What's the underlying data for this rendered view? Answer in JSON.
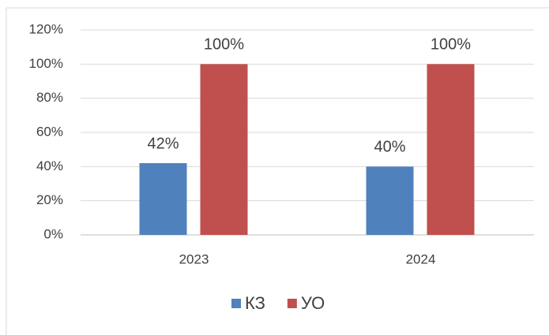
{
  "chart_data": {
    "type": "bar",
    "categories": [
      "2023",
      "2024"
    ],
    "series": [
      {
        "name": "КЗ",
        "color": "#4f81bd",
        "values": [
          42,
          40
        ],
        "value_labels": [
          "42%",
          "40%"
        ]
      },
      {
        "name": "УО",
        "color": "#c0504d",
        "values": [
          100,
          100
        ],
        "value_labels": [
          "100%",
          "100%"
        ]
      }
    ],
    "ylim": [
      0,
      120
    ],
    "yticks": [
      {
        "value": 0,
        "label": "0%"
      },
      {
        "value": 20,
        "label": "20%"
      },
      {
        "value": 40,
        "label": "40%"
      },
      {
        "value": 60,
        "label": "60%"
      },
      {
        "value": 80,
        "label": "80%"
      },
      {
        "value": 100,
        "label": "100%"
      },
      {
        "value": 120,
        "label": "120%"
      }
    ],
    "grid": true,
    "legend": "bottom"
  }
}
